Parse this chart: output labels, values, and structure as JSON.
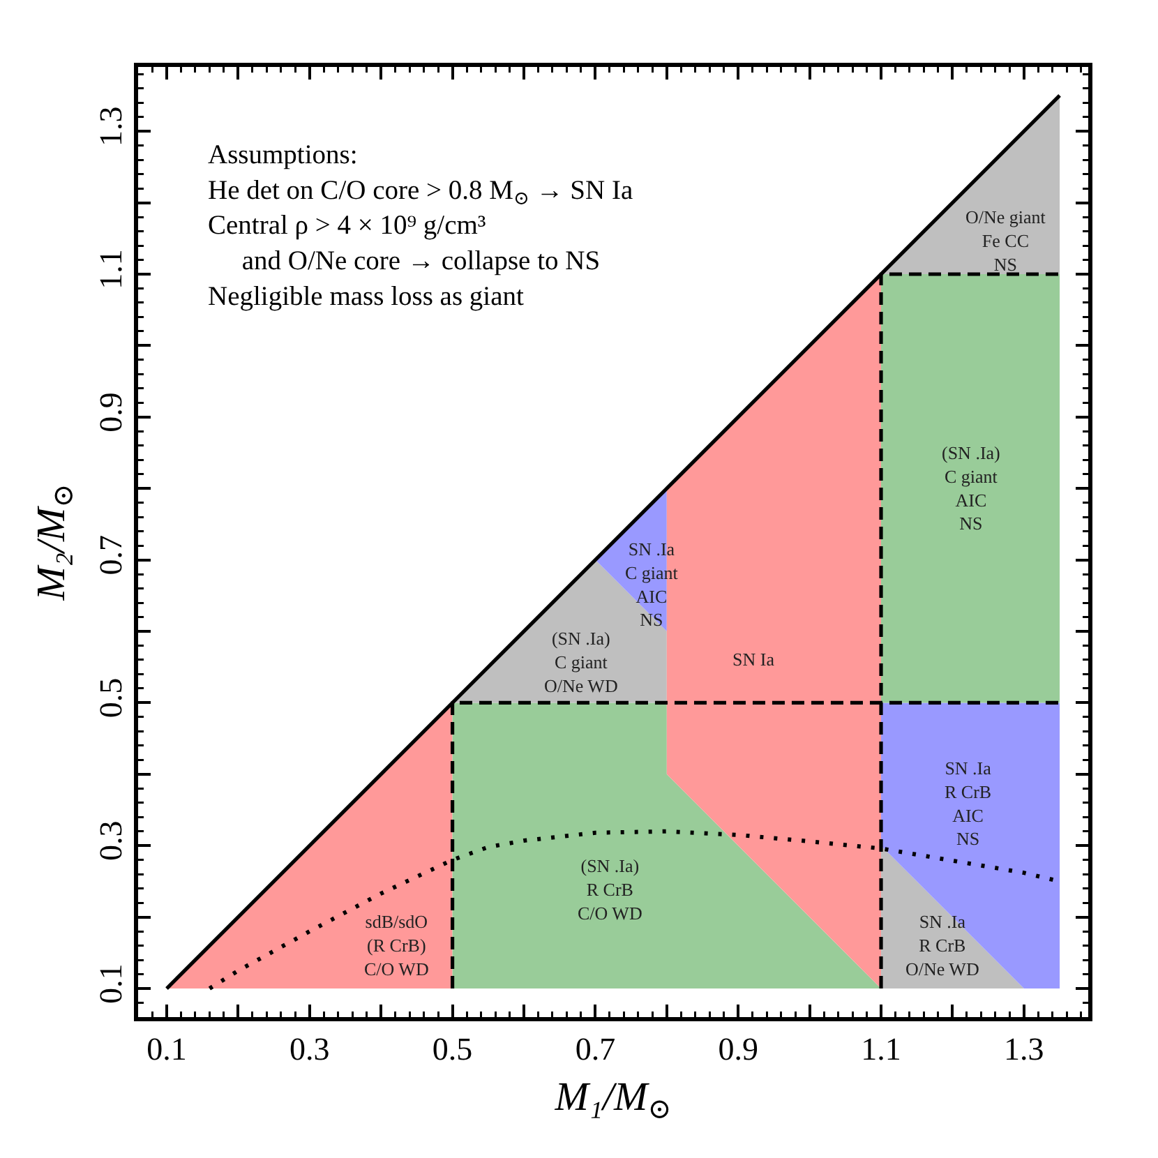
{
  "chart_data": {
    "type": "area",
    "xlabel": "M₁/M$_{⊙}$",
    "ylabel": "M₂/M$_{⊙}$",
    "xlim": [
      0.06,
      1.39
    ],
    "ylim": [
      0.06,
      1.39
    ],
    "xticks": [
      0.1,
      {
        "value": 0.2,
        "label": null
      },
      0.3,
      {
        "value": 0.4,
        "label": null
      },
      0.5,
      {
        "value": 0.6,
        "label": null
      },
      0.7,
      {
        "value": 0.8,
        "label": null
      },
      0.9,
      {
        "value": 1.0,
        "label": null
      },
      1.1,
      {
        "value": 1.2,
        "label": null
      },
      1.3
    ],
    "yticks": [
      0.1,
      {
        "value": 0.2,
        "label": null
      },
      0.3,
      {
        "value": 0.4,
        "label": null
      },
      0.5,
      {
        "value": 0.6,
        "label": null
      },
      0.7,
      {
        "value": 0.8,
        "label": null
      },
      0.9,
      {
        "value": 1.0,
        "label": null
      },
      1.1,
      {
        "value": 1.2,
        "label": null
      },
      1.3
    ],
    "grid": false,
    "marker": "none",
    "series": [
      {
        "color": "#ff9999",
        "x": [
          0.1,
          0.5,
          0.5,
          0.1
        ],
        "values": [
          0.1,
          0.5,
          0.1,
          0.1
        ]
      },
      {
        "color": "#99cc99",
        "x": [
          0.5,
          0.8,
          0.8,
          1.1,
          0.5,
          0.5
        ],
        "values": [
          0.5,
          0.5,
          0.4,
          0.1,
          0.1,
          0.5
        ]
      },
      {
        "color": "#bfbfbf",
        "x": [
          0.5,
          0.7,
          0.8,
          0.8,
          0.5
        ],
        "values": [
          0.5,
          0.7,
          0.6,
          0.5,
          0.5
        ]
      },
      {
        "color": "#9999ff",
        "x": [
          0.7,
          0.8,
          0.8,
          0.7
        ],
        "values": [
          0.7,
          0.8,
          0.6,
          0.7
        ]
      },
      {
        "color": "#ff9999",
        "x": [
          0.8,
          1.1,
          1.1,
          0.8,
          0.8
        ],
        "values": [
          0.8,
          1.1,
          0.1,
          0.4,
          0.8
        ]
      },
      {
        "color": "#bfbfbf",
        "x": [
          1.1,
          1.1,
          1.3,
          1.1
        ],
        "values": [
          0.1,
          0.3,
          0.1,
          0.1
        ]
      },
      {
        "color": "#9999ff",
        "x": [
          1.1,
          1.35,
          1.35,
          1.3,
          1.1,
          1.1
        ],
        "values": [
          0.5,
          0.5,
          0.1,
          0.1,
          0.3,
          0.5
        ]
      },
      {
        "color": "#99cc99",
        "x": [
          1.1,
          1.35,
          1.35,
          1.1,
          1.1
        ],
        "values": [
          1.1,
          1.1,
          0.5,
          0.5,
          1.1
        ]
      },
      {
        "color": "#bfbfbf",
        "x": [
          1.1,
          1.35,
          1.35,
          1.1
        ],
        "values": [
          1.1,
          1.35,
          1.1,
          1.1
        ]
      },
      {
        "type": "line",
        "color": "#000000",
        "line_style": "solid",
        "x": [
          0.1,
          1.35
        ],
        "values": [
          0.1,
          1.35
        ]
      },
      {
        "type": "line",
        "color": "#000000",
        "line_style": "dashed",
        "x": [
          0.5,
          0.5,
          1.35
        ],
        "values": [
          0.1,
          0.5,
          0.5
        ]
      },
      {
        "type": "line",
        "color": "#000000",
        "line_style": "dashed",
        "x": [
          1.1,
          1.1,
          1.35
        ],
        "values": [
          0.1,
          1.1,
          1.1
        ]
      },
      {
        "type": "line",
        "color": "#000000",
        "line_style": "dotted",
        "x": [
          0.16,
          0.2,
          0.3,
          0.4,
          0.5,
          0.55,
          0.6,
          0.7,
          0.8,
          0.9,
          1.0,
          1.1,
          1.2,
          1.3,
          1.35
        ],
        "values": [
          0.1,
          0.125,
          0.18,
          0.233,
          0.28,
          0.298,
          0.307,
          0.318,
          0.32,
          0.315,
          0.306,
          0.296,
          0.279,
          0.262,
          0.25
        ]
      }
    ],
    "annotations": [
      "Assumptions:\nHe det on C/O core > 0.8 M$_{⊙}$ → SN Ia\nCentral ρ > 4 × 10⁹ g/cm³\n     and O/Ne core → collapse to NS\nNegligible mass loss as giant",
      "sdB/sdO\n(R CrB)\nC/O WD",
      "(SN .Ia)\nR CrB\nC/O WD",
      "(SN .Ia)\nC giant\nO/Ne WD",
      "SN .Ia\nC giant\nAIC\nNS",
      "SN Ia",
      "O/Ne giant\nFe CC\nNS",
      "(SN .Ia)\nC giant\nAIC\nNS",
      "SN .Ia\nR CrB\nAIC\nNS",
      "SN .Ia\nR CrB\nO/Ne WD"
    ]
  }
}
